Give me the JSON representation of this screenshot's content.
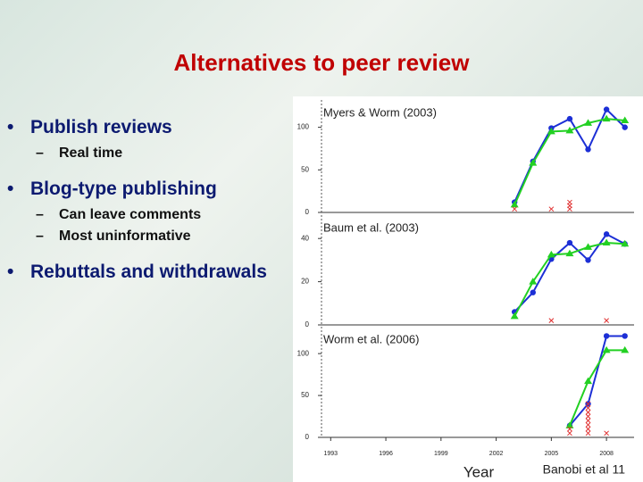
{
  "slide": {
    "title": "Alternatives to peer review",
    "bullets": [
      {
        "text": "Publish reviews",
        "sub": [
          "Real time"
        ]
      },
      {
        "text": "Blog-type publishing",
        "sub": [
          "Can leave comments",
          "Most uninformative"
        ]
      },
      {
        "text": "Rebuttals and withdrawals",
        "sub": []
      }
    ],
    "credit": "Banobi et al 11"
  },
  "chart_data": [
    {
      "type": "line",
      "title": "Myers & Worm (2003)",
      "xlim": [
        1992.5,
        2009.5
      ],
      "ylim": [
        0,
        130
      ],
      "yticks": [
        0,
        50,
        100
      ],
      "series": [
        {
          "color": "#1c2fd6",
          "marker": "circle",
          "line": true,
          "x": [
            2003,
            2004,
            2005,
            2006,
            2007,
            2008,
            2009
          ],
          "values": [
            12,
            60,
            99,
            110,
            74,
            121,
            100
          ]
        },
        {
          "color": "#22d022",
          "marker": "triangle",
          "line": true,
          "x": [
            2003,
            2004,
            2005,
            2006,
            2007,
            2008,
            2009
          ],
          "values": [
            9,
            58,
            95,
            96,
            105,
            110,
            108
          ]
        },
        {
          "color": "#e03030",
          "marker": "cross",
          "line": false,
          "x": [
            2003,
            2005,
            2006,
            2006,
            2006
          ],
          "values": [
            4,
            4,
            4,
            8,
            12
          ]
        }
      ]
    },
    {
      "type": "line",
      "title": "Baum et al. (2003)",
      "xlim": [
        1992.5,
        2009.5
      ],
      "ylim": [
        0,
        50
      ],
      "yticks": [
        0,
        20,
        40
      ],
      "series": [
        {
          "color": "#1c2fd6",
          "marker": "circle",
          "line": true,
          "x": [
            2003,
            2004,
            2005,
            2006,
            2007,
            2008,
            2009
          ],
          "values": [
            6,
            15,
            30.5,
            38,
            30,
            42,
            37.5
          ]
        },
        {
          "color": "#22d022",
          "marker": "triangle",
          "line": true,
          "x": [
            2003,
            2004,
            2005,
            2006,
            2007,
            2008,
            2009
          ],
          "values": [
            4,
            20,
            32.5,
            33,
            36,
            38,
            37.5
          ]
        },
        {
          "color": "#e03030",
          "marker": "cross",
          "line": false,
          "x": [
            2005,
            2008
          ],
          "values": [
            2,
            2
          ]
        }
      ]
    },
    {
      "type": "line",
      "title": "Worm et al. (2006)",
      "xlim": [
        1992.5,
        2009.5
      ],
      "ylim": [
        0,
        130
      ],
      "yticks": [
        0,
        50,
        100
      ],
      "xticks": [
        1993,
        1996,
        1999,
        2002,
        2005,
        2008
      ],
      "xlabel": "Year",
      "series": [
        {
          "color": "#1c2fd6",
          "marker": "circle",
          "line": true,
          "x": [
            2006,
            2007,
            2008,
            2009
          ],
          "values": [
            14,
            40,
            121,
            121
          ]
        },
        {
          "color": "#22d022",
          "marker": "triangle",
          "line": true,
          "x": [
            2006,
            2007,
            2008,
            2009
          ],
          "values": [
            14,
            67,
            104,
            104
          ]
        },
        {
          "color": "#e03030",
          "marker": "cross",
          "line": false,
          "x": [
            2006,
            2006,
            2007,
            2007,
            2007,
            2007,
            2007,
            2007,
            2007,
            2007,
            2008
          ],
          "values": [
            5,
            10,
            5,
            10,
            15,
            20,
            25,
            30,
            35,
            40,
            5
          ]
        }
      ]
    }
  ]
}
